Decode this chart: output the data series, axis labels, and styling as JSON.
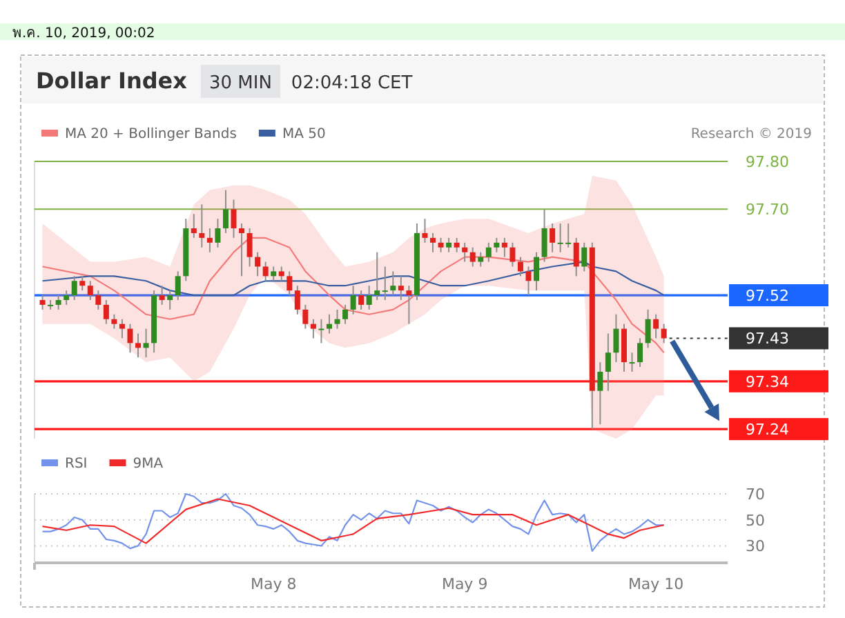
{
  "chart_data": [
    {
      "type": "candlestick",
      "title": "Dollar Index",
      "subtitle": "30 MIN",
      "annotations": [
        "พ.ค. 10, 2019, 00:02",
        "02:04:18 CET",
        "Research © 2019"
      ],
      "x": [
        "2019-05-06T19:00",
        "2019-05-06T20:00",
        "2019-05-06T21:00",
        "2019-05-06T22:00",
        "2019-05-06T23:00",
        "2019-05-07T00:00",
        "2019-05-07T01:00",
        "2019-05-07T02:00",
        "2019-05-07T03:00",
        "2019-05-07T04:00",
        "2019-05-07T05:00",
        "2019-05-07T06:00",
        "2019-05-07T07:00",
        "2019-05-07T08:00",
        "2019-05-07T09:00",
        "2019-05-07T10:00",
        "2019-05-07T11:00",
        "2019-05-07T12:00",
        "2019-05-07T13:00",
        "2019-05-07T14:00",
        "2019-05-07T15:00",
        "2019-05-07T16:00",
        "2019-05-07T17:00",
        "2019-05-07T18:00",
        "2019-05-07T19:00",
        "2019-05-07T20:00",
        "2019-05-07T21:00",
        "2019-05-07T22:00",
        "2019-05-07T23:00",
        "2019-05-08T00:00",
        "2019-05-08T01:00",
        "2019-05-08T02:00",
        "2019-05-08T03:00",
        "2019-05-08T04:00",
        "2019-05-08T05:00",
        "2019-05-08T06:00",
        "2019-05-08T07:00",
        "2019-05-08T08:00",
        "2019-05-08T09:00",
        "2019-05-08T10:00",
        "2019-05-08T11:00",
        "2019-05-08T12:00",
        "2019-05-08T13:00",
        "2019-05-08T14:00",
        "2019-05-08T15:00",
        "2019-05-08T16:00",
        "2019-05-08T17:00",
        "2019-05-08T18:00",
        "2019-05-08T19:00",
        "2019-05-08T20:00",
        "2019-05-08T21:00",
        "2019-05-08T22:00",
        "2019-05-08T23:00",
        "2019-05-09T00:00",
        "2019-05-09T01:00",
        "2019-05-09T02:00",
        "2019-05-09T03:00",
        "2019-05-09T04:00",
        "2019-05-09T05:00",
        "2019-05-09T06:00",
        "2019-05-09T07:00",
        "2019-05-09T08:00",
        "2019-05-09T09:00",
        "2019-05-09T10:00",
        "2019-05-09T11:00",
        "2019-05-09T12:00",
        "2019-05-09T13:00",
        "2019-05-09T14:00",
        "2019-05-09T15:00",
        "2019-05-09T16:00",
        "2019-05-09T17:00",
        "2019-05-09T18:00",
        "2019-05-09T19:00",
        "2019-05-09T20:00",
        "2019-05-09T21:00",
        "2019-05-09T22:00",
        "2019-05-09T23:00",
        "2019-05-10T00:00",
        "2019-05-10T01:00"
      ],
      "ohlc": [
        [
          97.51,
          97.52,
          97.49,
          97.5
        ],
        [
          97.5,
          97.51,
          97.49,
          97.5
        ],
        [
          97.5,
          97.52,
          97.49,
          97.51
        ],
        [
          97.51,
          97.53,
          97.5,
          97.52
        ],
        [
          97.52,
          97.56,
          97.51,
          97.55
        ],
        [
          97.55,
          97.56,
          97.53,
          97.54
        ],
        [
          97.54,
          97.55,
          97.51,
          97.52
        ],
        [
          97.52,
          97.53,
          97.49,
          97.5
        ],
        [
          97.5,
          97.51,
          97.46,
          97.47
        ],
        [
          97.47,
          97.48,
          97.45,
          97.46
        ],
        [
          97.46,
          97.47,
          97.43,
          97.45
        ],
        [
          97.45,
          97.46,
          97.4,
          97.42
        ],
        [
          97.42,
          97.44,
          97.39,
          97.41
        ],
        [
          97.41,
          97.45,
          97.39,
          97.42
        ],
        [
          97.42,
          97.53,
          97.4,
          97.52
        ],
        [
          97.52,
          97.54,
          97.5,
          97.51
        ],
        [
          97.51,
          97.53,
          97.49,
          97.52
        ],
        [
          97.52,
          97.57,
          97.51,
          97.56
        ],
        [
          97.56,
          97.68,
          97.55,
          97.66
        ],
        [
          97.66,
          97.69,
          97.64,
          97.65
        ],
        [
          97.65,
          97.71,
          97.62,
          97.64
        ],
        [
          97.64,
          97.66,
          97.61,
          97.63
        ],
        [
          97.63,
          97.68,
          97.62,
          97.66
        ],
        [
          97.66,
          97.74,
          97.65,
          97.7
        ],
        [
          97.7,
          97.72,
          97.64,
          97.66
        ],
        [
          97.66,
          97.67,
          97.56,
          97.65
        ],
        [
          97.65,
          97.66,
          97.58,
          97.6
        ],
        [
          97.6,
          97.61,
          97.56,
          97.58
        ],
        [
          97.58,
          97.59,
          97.55,
          97.56
        ],
        [
          97.56,
          97.58,
          97.55,
          97.57
        ],
        [
          97.57,
          97.58,
          97.55,
          97.56
        ],
        [
          97.56,
          97.57,
          97.52,
          97.53
        ],
        [
          97.53,
          97.54,
          97.48,
          97.49
        ],
        [
          97.49,
          97.5,
          97.45,
          97.46
        ],
        [
          97.46,
          97.47,
          97.43,
          97.45
        ],
        [
          97.45,
          97.47,
          97.42,
          97.45
        ],
        [
          97.45,
          97.48,
          97.44,
          97.46
        ],
        [
          97.46,
          97.49,
          97.45,
          97.47
        ],
        [
          97.47,
          97.5,
          97.46,
          97.49
        ],
        [
          97.49,
          97.54,
          97.48,
          97.52
        ],
        [
          97.52,
          97.53,
          97.49,
          97.5
        ],
        [
          97.5,
          97.54,
          97.49,
          97.52
        ],
        [
          97.52,
          97.61,
          97.51,
          97.53
        ],
        [
          97.53,
          97.58,
          97.51,
          97.53
        ],
        [
          97.53,
          97.57,
          97.52,
          97.54
        ],
        [
          97.54,
          97.56,
          97.51,
          97.53
        ],
        [
          97.53,
          97.54,
          97.46,
          97.52
        ],
        [
          97.52,
          97.67,
          97.51,
          97.65
        ],
        [
          97.65,
          97.68,
          97.63,
          97.64
        ],
        [
          97.64,
          97.65,
          97.61,
          97.63
        ],
        [
          97.63,
          97.64,
          97.61,
          97.62
        ],
        [
          97.62,
          97.64,
          97.61,
          97.63
        ],
        [
          97.63,
          97.64,
          97.61,
          97.62
        ],
        [
          97.62,
          97.63,
          97.59,
          97.61
        ],
        [
          97.61,
          97.62,
          97.58,
          97.59
        ],
        [
          97.59,
          97.61,
          97.58,
          97.6
        ],
        [
          97.6,
          97.63,
          97.59,
          97.62
        ],
        [
          97.62,
          97.64,
          97.61,
          97.63
        ],
        [
          97.63,
          97.64,
          97.6,
          97.62
        ],
        [
          97.62,
          97.63,
          97.58,
          97.59
        ],
        [
          97.59,
          97.6,
          97.56,
          97.57
        ],
        [
          97.57,
          97.58,
          97.52,
          97.55
        ],
        [
          97.55,
          97.61,
          97.53,
          97.6
        ],
        [
          97.6,
          97.7,
          97.59,
          97.66
        ],
        [
          97.66,
          97.67,
          97.61,
          97.63
        ],
        [
          97.63,
          97.67,
          97.61,
          97.63
        ],
        [
          97.63,
          97.67,
          97.62,
          97.63
        ],
        [
          97.63,
          97.64,
          97.56,
          97.58
        ],
        [
          97.58,
          97.63,
          97.57,
          97.62
        ],
        [
          97.62,
          97.63,
          97.24,
          97.32
        ],
        [
          97.32,
          97.38,
          97.25,
          97.36
        ],
        [
          97.36,
          97.44,
          97.32,
          97.4
        ],
        [
          97.4,
          97.48,
          97.38,
          97.45
        ],
        [
          97.45,
          97.46,
          97.36,
          97.38
        ],
        [
          97.38,
          97.4,
          97.36,
          97.38
        ],
        [
          97.38,
          97.43,
          97.37,
          97.42
        ],
        [
          97.42,
          97.49,
          97.41,
          97.47
        ],
        [
          97.47,
          97.48,
          97.43,
          97.45
        ],
        [
          97.45,
          97.46,
          97.42,
          97.43
        ]
      ],
      "series": [
        {
          "name": "MA 20 + Bollinger Bands",
          "type": "line",
          "color": "#f47a7a",
          "x": [
            "2019-05-06T19:00",
            "2019-05-07T01:00",
            "2019-05-07T04:00",
            "2019-05-07T08:00",
            "2019-05-07T11:00",
            "2019-05-07T14:00",
            "2019-05-07T16:00",
            "2019-05-07T19:00",
            "2019-05-07T21:00",
            "2019-05-07T23:00",
            "2019-05-08T02:00",
            "2019-05-08T04:00",
            "2019-05-08T07:00",
            "2019-05-08T09:00",
            "2019-05-08T12:00",
            "2019-05-08T15:00",
            "2019-05-08T17:00",
            "2019-05-08T19:00",
            "2019-05-08T21:00",
            "2019-05-09T00:00",
            "2019-05-09T03:00",
            "2019-05-09T08:00",
            "2019-05-09T11:00",
            "2019-05-09T15:00",
            "2019-05-09T16:00",
            "2019-05-09T19:00",
            "2019-05-09T21:00",
            "2019-05-10T00:00",
            "2019-05-10T01:00"
          ],
          "values": [
            97.58,
            97.56,
            97.53,
            97.48,
            97.47,
            97.48,
            97.55,
            97.61,
            97.64,
            97.64,
            97.62,
            97.57,
            97.52,
            97.49,
            97.48,
            97.49,
            97.51,
            97.54,
            97.57,
            97.6,
            97.6,
            97.59,
            97.6,
            97.59,
            97.57,
            97.51,
            97.46,
            97.42,
            97.4
          ],
          "upper": [
            97.67,
            97.59,
            97.59,
            97.6,
            97.58,
            97.71,
            97.74,
            97.75,
            97.75,
            97.74,
            97.72,
            97.69,
            97.62,
            97.58,
            97.59,
            97.61,
            97.64,
            97.66,
            97.67,
            97.68,
            97.68,
            97.65,
            97.67,
            97.69,
            97.77,
            97.76,
            97.71,
            97.6,
            97.56
          ],
          "lower": [
            97.46,
            97.46,
            97.43,
            97.38,
            97.39,
            97.34,
            97.36,
            97.45,
            97.52,
            97.56,
            97.52,
            97.46,
            97.42,
            97.41,
            97.42,
            97.44,
            97.46,
            97.48,
            97.51,
            97.54,
            97.54,
            97.53,
            97.53,
            97.53,
            97.24,
            97.22,
            97.24,
            97.31,
            97.31
          ]
        },
        {
          "name": "MA 50",
          "type": "line",
          "color": "#3a5fa0",
          "x": [
            "2019-05-06T19:00",
            "2019-05-07T01:00",
            "2019-05-07T04:00",
            "2019-05-07T08:00",
            "2019-05-07T11:00",
            "2019-05-07T14:00",
            "2019-05-07T16:00",
            "2019-05-07T19:00",
            "2019-05-07T21:00",
            "2019-05-07T23:00",
            "2019-05-08T02:00",
            "2019-05-08T04:00",
            "2019-05-08T07:00",
            "2019-05-08T09:00",
            "2019-05-08T12:00",
            "2019-05-08T15:00",
            "2019-05-08T17:00",
            "2019-05-08T19:00",
            "2019-05-08T21:00",
            "2019-05-09T00:00",
            "2019-05-09T03:00",
            "2019-05-09T08:00",
            "2019-05-09T11:00",
            "2019-05-09T15:00",
            "2019-05-09T16:00",
            "2019-05-09T19:00",
            "2019-05-09T21:00",
            "2019-05-10T00:00",
            "2019-05-10T01:00"
          ],
          "values": [
            97.55,
            97.56,
            97.56,
            97.55,
            97.53,
            97.52,
            97.52,
            97.52,
            97.54,
            97.55,
            97.55,
            97.55,
            97.54,
            97.54,
            97.55,
            97.56,
            97.56,
            97.55,
            97.54,
            97.54,
            97.55,
            97.57,
            97.58,
            97.59,
            97.58,
            97.57,
            97.55,
            97.53,
            97.52
          ]
        }
      ],
      "xlim": [
        "2019-05-06T18:00",
        "2019-05-10T09:00"
      ],
      "ylim": [
        97.22,
        97.8
      ],
      "yticks": [
        {
          "value": 97.24,
          "label": "97.24"
        },
        {
          "value": 97.34,
          "label": "97.34"
        },
        {
          "value": 97.43,
          "label": "97.43"
        },
        {
          "value": 97.52,
          "label": "97.52"
        },
        {
          "value": 97.7,
          "label": "97.70"
        },
        {
          "value": 97.8,
          "label": "97.80"
        }
      ],
      "ref_lines": [
        {
          "axis": "y",
          "value": 97.8,
          "color": "#7cb342"
        },
        {
          "axis": "y",
          "value": 97.7,
          "color": "#7cb342"
        },
        {
          "axis": "y",
          "value": 97.52,
          "color": "#1a66ff"
        },
        {
          "axis": "y",
          "value": 97.43,
          "color": "#333333",
          "line_style": "dotted"
        },
        {
          "axis": "y",
          "value": 97.34,
          "color": "#ff1a1a"
        },
        {
          "axis": "y",
          "value": 97.24,
          "color": "#ff1a1a"
        }
      ],
      "legend": "top left",
      "tick_labels": "y"
    },
    {
      "type": "line",
      "series": [
        {
          "name": "RSI",
          "color": "#7393ea",
          "x": [
            "2019-05-06T19:00",
            "2019-05-06T20:00",
            "2019-05-06T21:00",
            "2019-05-06T22:00",
            "2019-05-06T23:00",
            "2019-05-07T00:00",
            "2019-05-07T01:00",
            "2019-05-07T02:00",
            "2019-05-07T03:00",
            "2019-05-07T04:00",
            "2019-05-07T05:00",
            "2019-05-07T06:00",
            "2019-05-07T07:00",
            "2019-05-07T08:00",
            "2019-05-07T09:00",
            "2019-05-07T10:00",
            "2019-05-07T11:00",
            "2019-05-07T12:00",
            "2019-05-07T13:00",
            "2019-05-07T14:00",
            "2019-05-07T15:00",
            "2019-05-07T16:00",
            "2019-05-07T17:00",
            "2019-05-07T18:00",
            "2019-05-07T19:00",
            "2019-05-07T20:00",
            "2019-05-07T21:00",
            "2019-05-07T22:00",
            "2019-05-07T23:00",
            "2019-05-08T00:00",
            "2019-05-08T01:00",
            "2019-05-08T02:00",
            "2019-05-08T03:00",
            "2019-05-08T04:00",
            "2019-05-08T05:00",
            "2019-05-08T06:00",
            "2019-05-08T07:00",
            "2019-05-08T08:00",
            "2019-05-08T09:00",
            "2019-05-08T10:00",
            "2019-05-08T11:00",
            "2019-05-08T12:00",
            "2019-05-08T13:00",
            "2019-05-08T14:00",
            "2019-05-08T15:00",
            "2019-05-08T16:00",
            "2019-05-08T17:00",
            "2019-05-08T18:00",
            "2019-05-08T19:00",
            "2019-05-08T20:00",
            "2019-05-08T21:00",
            "2019-05-08T22:00",
            "2019-05-08T23:00",
            "2019-05-09T00:00",
            "2019-05-09T01:00",
            "2019-05-09T02:00",
            "2019-05-09T03:00",
            "2019-05-09T04:00",
            "2019-05-09T05:00",
            "2019-05-09T06:00",
            "2019-05-09T07:00",
            "2019-05-09T08:00",
            "2019-05-09T09:00",
            "2019-05-09T10:00",
            "2019-05-09T11:00",
            "2019-05-09T12:00",
            "2019-05-09T13:00",
            "2019-05-09T14:00",
            "2019-05-09T15:00",
            "2019-05-09T16:00",
            "2019-05-09T17:00",
            "2019-05-09T18:00",
            "2019-05-09T19:00",
            "2019-05-09T20:00",
            "2019-05-09T21:00",
            "2019-05-09T22:00",
            "2019-05-09T23:00",
            "2019-05-10T00:00",
            "2019-05-10T01:00"
          ],
          "values": [
            41,
            41,
            43,
            46,
            52,
            50,
            43,
            43,
            35,
            34,
            32,
            28,
            30,
            39,
            57,
            57,
            52,
            55,
            70,
            68,
            63,
            63,
            65,
            70,
            61,
            59,
            54,
            46,
            45,
            43,
            46,
            41,
            34,
            32,
            31,
            30,
            37,
            34,
            46,
            54,
            50,
            55,
            51,
            57,
            55,
            55,
            47,
            65,
            63,
            61,
            57,
            60,
            57,
            52,
            48,
            54,
            58,
            55,
            50,
            45,
            43,
            39,
            54,
            65,
            54,
            55,
            54,
            48,
            54,
            26,
            34,
            39,
            43,
            39,
            41,
            45,
            50,
            46,
            46
          ]
        },
        {
          "name": "9MA",
          "color": "#f02a2a",
          "x": [
            "2019-05-06T19:00",
            "2019-05-06T22:00",
            "2019-05-07T01:00",
            "2019-05-07T04:00",
            "2019-05-07T08:00",
            "2019-05-07T13:00",
            "2019-05-07T17:00",
            "2019-05-07T21:00",
            "2019-05-08T02:00",
            "2019-05-08T06:00",
            "2019-05-08T10:00",
            "2019-05-08T13:00",
            "2019-05-08T17:00",
            "2019-05-08T22:00",
            "2019-05-09T01:00",
            "2019-05-09T06:00",
            "2019-05-09T09:00",
            "2019-05-09T13:00",
            "2019-05-09T18:00",
            "2019-05-09T20:00",
            "2019-05-09T22:00",
            "2019-05-10T01:00"
          ],
          "values": [
            45,
            42,
            46,
            45,
            32,
            58,
            66,
            61,
            46,
            34,
            39,
            51,
            54,
            59,
            54,
            54,
            46,
            54,
            39,
            36,
            42,
            46
          ]
        }
      ],
      "xlim": [
        "2019-05-06T18:00",
        "2019-05-10T09:00"
      ],
      "xticks": [
        {
          "value": "2019-05-08",
          "label": "May 8"
        },
        {
          "value": "2019-05-09",
          "label": "May 9"
        },
        {
          "value": "2019-05-10",
          "label": "May 10"
        }
      ],
      "ylim": [
        18,
        70
      ],
      "yticks": [
        30,
        50,
        70
      ],
      "grid": "y",
      "legend": "top left"
    }
  ]
}
